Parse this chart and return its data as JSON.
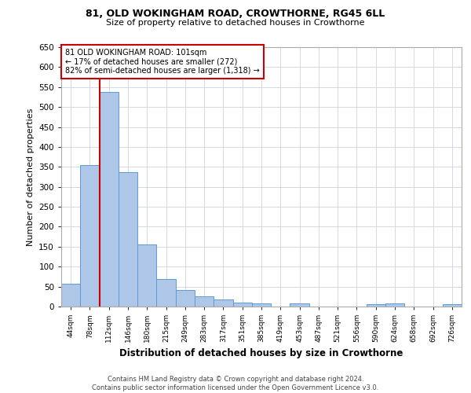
{
  "title1": "81, OLD WOKINGHAM ROAD, CROWTHORNE, RG45 6LL",
  "title2": "Size of property relative to detached houses in Crowthorne",
  "xlabel": "Distribution of detached houses by size in Crowthorne",
  "ylabel": "Number of detached properties",
  "categories": [
    "44sqm",
    "78sqm",
    "112sqm",
    "146sqm",
    "180sqm",
    "215sqm",
    "249sqm",
    "283sqm",
    "317sqm",
    "351sqm",
    "385sqm",
    "419sqm",
    "453sqm",
    "487sqm",
    "521sqm",
    "556sqm",
    "590sqm",
    "624sqm",
    "658sqm",
    "692sqm",
    "726sqm"
  ],
  "values": [
    58,
    355,
    538,
    336,
    155,
    69,
    42,
    25,
    18,
    9,
    8,
    0,
    8,
    0,
    0,
    0,
    5,
    8,
    0,
    0,
    5
  ],
  "bar_color": "#aec6e8",
  "bar_edge_color": "#5b9bd5",
  "red_line_x": 1.5,
  "annotation_text_line1": "81 OLD WOKINGHAM ROAD: 101sqm",
  "annotation_text_line2": "← 17% of detached houses are smaller (272)",
  "annotation_text_line3": "82% of semi-detached houses are larger (1,318) →",
  "red_line_color": "#cc0000",
  "annotation_box_edge": "#cc0000",
  "ylim": [
    0,
    650
  ],
  "yticks": [
    0,
    50,
    100,
    150,
    200,
    250,
    300,
    350,
    400,
    450,
    500,
    550,
    600,
    650
  ],
  "grid_color": "#cdd5e0",
  "background_color": "#ffffff",
  "footer1": "Contains HM Land Registry data © Crown copyright and database right 2024.",
  "footer2": "Contains public sector information licensed under the Open Government Licence v3.0."
}
